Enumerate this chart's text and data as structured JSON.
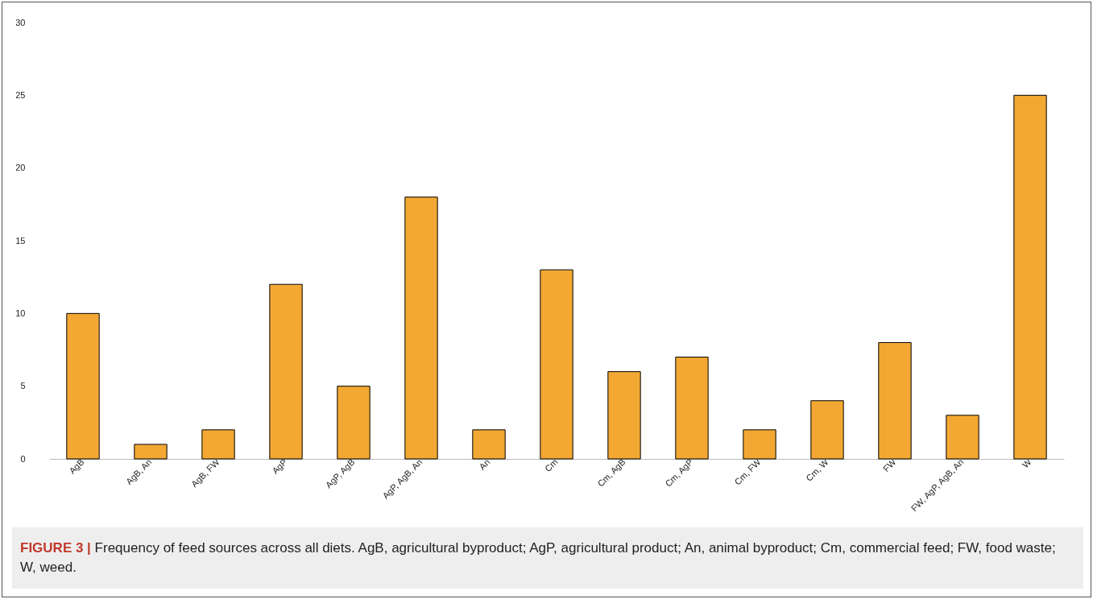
{
  "chart_data": {
    "type": "bar",
    "categories": [
      "AgB",
      "AgB, An",
      "AgB, FW",
      "AgP",
      "AgP, AgB",
      "AgP, AgB, An",
      "An",
      "Cm",
      "Cm, AgB",
      "Cm, AgP",
      "Cm, FW",
      "Cm, W",
      "FW",
      "FW, AgP, AgB, An",
      "W"
    ],
    "values": [
      10,
      1,
      2,
      12,
      5,
      18,
      2,
      13,
      6,
      7,
      2,
      4,
      8,
      3,
      25
    ],
    "color": "#f2a833",
    "ylim": [
      0,
      30
    ],
    "yticks": [
      0,
      5,
      10,
      15,
      20,
      25,
      30
    ],
    "grid": false,
    "annotations": [
      "FIGURE 3 | Frequency of feed sources across all diets. AgB, agricultural byproduct; AgP, agricultural product; An, animal byproduct; Cm, commercial feed; FW, food waste; W, weed."
    ]
  }
}
